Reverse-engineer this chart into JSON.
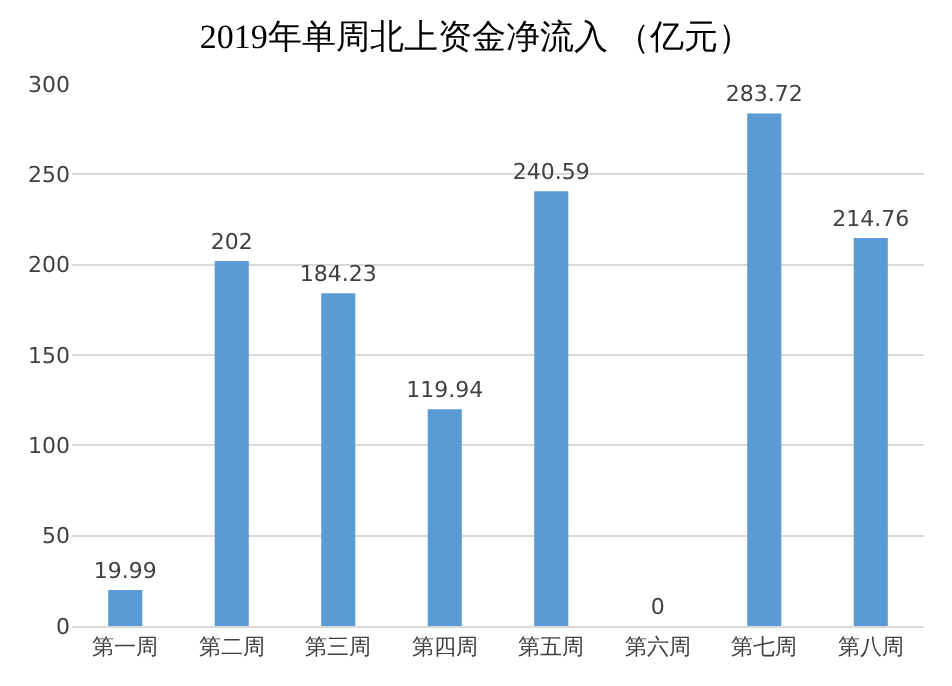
{
  "chart_data": {
    "type": "bar",
    "title": "2019年单周北上资金净流入 （亿元）",
    "categories": [
      "第一周",
      "第二周",
      "第三周",
      "第四周",
      "第五周",
      "第六周",
      "第七周",
      "第八周"
    ],
    "values": [
      19.99,
      202,
      184.23,
      119.94,
      240.59,
      0,
      283.72,
      214.76
    ],
    "color": "#5b9bd5",
    "ylim": [
      0,
      300
    ],
    "yticks": [
      0,
      50,
      100,
      150,
      200,
      250,
      300
    ],
    "grid": "y",
    "data_labels": true
  }
}
